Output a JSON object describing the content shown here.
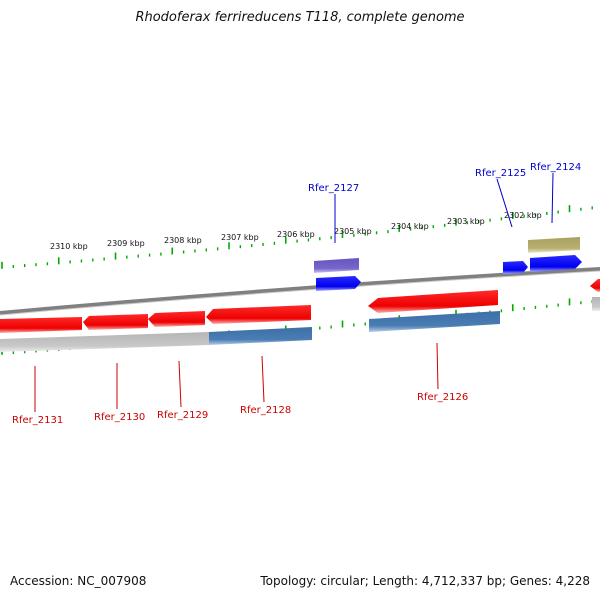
{
  "title": "Rhodoferax ferrireducens T118, complete genome",
  "footer": {
    "accession": "Accession: NC_007908",
    "summary": "Topology: circular; Length: 4,712,337 bp; Genes: 4,228"
  },
  "scale": {
    "ticks": [
      "2310 kbp",
      "2309 kbp",
      "2308 kbp",
      "2307 kbp",
      "2306 kbp",
      "2305 kbp",
      "2304 kbp",
      "2303 kbp",
      "2302 kbp"
    ]
  },
  "genes_above": [
    {
      "label": "Rfer_2127"
    },
    {
      "label": "Rfer_2125"
    },
    {
      "label": "Rfer_2124"
    }
  ],
  "genes_below": [
    {
      "label": "Rfer_2131"
    },
    {
      "label": "Rfer_2130"
    },
    {
      "label": "Rfer_2129"
    },
    {
      "label": "Rfer_2128"
    },
    {
      "label": "Rfer_2126"
    }
  ],
  "colors": {
    "reverse_gene": "#ff0000",
    "forward_gene": "#0000ee",
    "backbone": "#808080",
    "ticks": "#00aa00",
    "label_forward": "#0000cc",
    "label_reverse": "#cc0000",
    "cds_blue": "#4a7db3",
    "cds_purple": "#7766cc",
    "cds_olive": "#b8b070"
  }
}
